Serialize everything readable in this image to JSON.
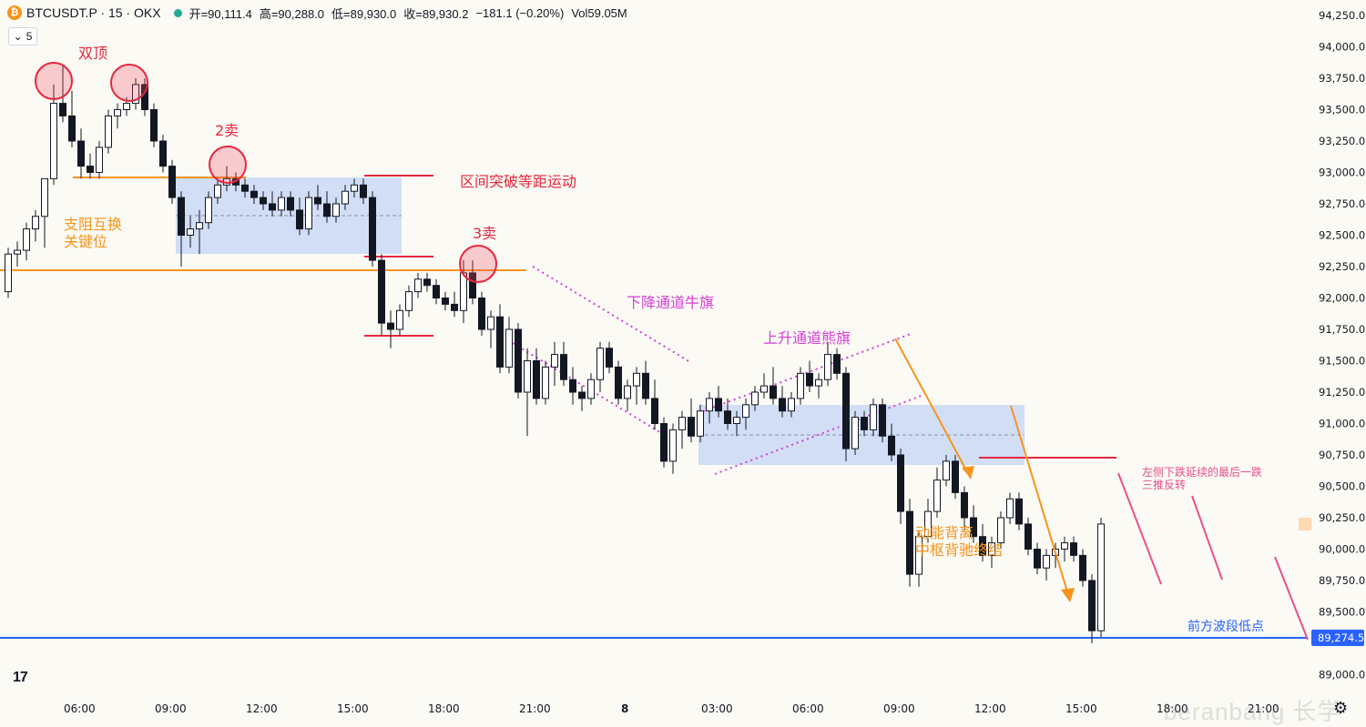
{
  "header": {
    "symbol": "BTCUSDT.P · 15 · OKX",
    "open": "开=90,111.4",
    "high": "高=90,288.0",
    "low": "低=89,930.0",
    "close": "收=89,930.2",
    "change": "−181.1 (−0.20%)",
    "volume": "Vol59.05M"
  },
  "interval_box": {
    "chevron": "⌄",
    "value": "5"
  },
  "price_axis": {
    "ticks": [
      94250,
      94000,
      93750,
      93500,
      93250,
      93000,
      92750,
      92500,
      92250,
      92000,
      91750,
      91500,
      91250,
      91000,
      90750,
      90500,
      90250,
      90000,
      89750,
      89500,
      89000
    ],
    "tick_labels": [
      "94,250.0",
      "94,000.0",
      "93,750.0",
      "93,500.0",
      "93,250.0",
      "93,000.0",
      "92,750.0",
      "92,500.0",
      "92,250.0",
      "92,000.0",
      "91,750.0",
      "91,500.0",
      "91,250.0",
      "91,000.0",
      "90,750.0",
      "90,500.0",
      "90,250.0",
      "90,000.0",
      "89,750.0",
      "89,500.0",
      "89,000.0"
    ],
    "current_price": 89274.5,
    "current_price_label": "89,274.5"
  },
  "time_axis": {
    "labels": [
      {
        "text": "06:00",
        "bar": 7
      },
      {
        "text": "09:00",
        "bar": 17
      },
      {
        "text": "12:00",
        "bar": 27
      },
      {
        "text": "15:00",
        "bar": 37
      },
      {
        "text": "18:00",
        "bar": 47
      },
      {
        "text": "21:00",
        "bar": 57
      },
      {
        "text": "8",
        "bar": 67
      },
      {
        "text": "03:00",
        "bar": 77
      },
      {
        "text": "06:00",
        "bar": 87
      },
      {
        "text": "09:00",
        "bar": 97
      },
      {
        "text": "12:00",
        "bar": 107
      },
      {
        "text": "15:00",
        "bar": 117
      },
      {
        "text": "18:00",
        "bar": 127
      },
      {
        "text": "21:00",
        "bar": 137
      }
    ]
  },
  "annotations": {
    "double_top": "双顶",
    "sell2": "2卖",
    "sell3": "3卖",
    "key_level_1": "支阻互换",
    "key_level_2": "关键位",
    "range_breakout": "区间突破等距运动",
    "bull_flag": "下降通道牛旗",
    "bear_flag": "上升通道熊旗",
    "divergence_1": "动能背离",
    "divergence_2": "中枢背驰终结",
    "three_push_1": "左侧下跌延续的最后一跌",
    "three_push_2": "三推反转",
    "prior_low": "前方波段低点"
  },
  "colors": {
    "up": "#131722",
    "down": "#131722",
    "orange": "#f7941d",
    "red": "#e5283e",
    "magenta": "#d63fd6",
    "pink": "#e8508c",
    "blue_line": "#2962ff",
    "range_fill": "#c9d8f6"
  },
  "watermark": "beranbang 长学",
  "chart_data": {
    "type": "candlestick",
    "interval": "15",
    "candles": [
      [
        92050,
        92400,
        92000,
        92350
      ],
      [
        92350,
        92450,
        92250,
        92380
      ],
      [
        92380,
        92600,
        92300,
        92550
      ],
      [
        92550,
        92700,
        92450,
        92650
      ],
      [
        92650,
        92950,
        92400,
        92950
      ],
      [
        92950,
        93700,
        92900,
        93550
      ],
      [
        93550,
        93850,
        93400,
        93450
      ],
      [
        93450,
        93650,
        93200,
        93250
      ],
      [
        93250,
        93350,
        92950,
        93050
      ],
      [
        93050,
        93150,
        92950,
        93000
      ],
      [
        93000,
        93250,
        92950,
        93200
      ],
      [
        93200,
        93500,
        93150,
        93450
      ],
      [
        93450,
        93550,
        93350,
        93500
      ],
      [
        93500,
        93600,
        93450,
        93550
      ],
      [
        93550,
        93750,
        93500,
        93700
      ],
      [
        93700,
        93750,
        93450,
        93500
      ],
      [
        93500,
        93550,
        93200,
        93250
      ],
      [
        93250,
        93300,
        93000,
        93050
      ],
      [
        93050,
        93100,
        92750,
        92800
      ],
      [
        92800,
        92850,
        92250,
        92500
      ],
      [
        92500,
        92650,
        92400,
        92550
      ],
      [
        92550,
        92700,
        92350,
        92600
      ],
      [
        92600,
        92850,
        92550,
        92800
      ],
      [
        92800,
        92950,
        92750,
        92900
      ],
      [
        92900,
        93050,
        92850,
        92950
      ],
      [
        92950,
        93000,
        92850,
        92900
      ],
      [
        92900,
        92950,
        92800,
        92850
      ],
      [
        92850,
        92900,
        92750,
        92800
      ],
      [
        92800,
        92850,
        92700,
        92750
      ],
      [
        92750,
        92850,
        92650,
        92700
      ],
      [
        92700,
        92850,
        92650,
        92800
      ],
      [
        92800,
        92850,
        92650,
        92700
      ],
      [
        92700,
        92800,
        92500,
        92550
      ],
      [
        92550,
        92850,
        92500,
        92800
      ],
      [
        92800,
        92900,
        92700,
        92750
      ],
      [
        92750,
        92850,
        92600,
        92650
      ],
      [
        92650,
        92800,
        92600,
        92750
      ],
      [
        92750,
        92900,
        92700,
        92850
      ],
      [
        92850,
        92950,
        92800,
        92900
      ],
      [
        92900,
        92950,
        92750,
        92800
      ],
      [
        92800,
        92850,
        92250,
        92300
      ],
      [
        92300,
        92350,
        91700,
        91800
      ],
      [
        91800,
        91900,
        91600,
        91750
      ],
      [
        91750,
        91950,
        91700,
        91900
      ],
      [
        91900,
        92100,
        91850,
        92050
      ],
      [
        92050,
        92200,
        92000,
        92150
      ],
      [
        92150,
        92200,
        92050,
        92100
      ],
      [
        92100,
        92150,
        91950,
        92000
      ],
      [
        92000,
        92050,
        91900,
        91950
      ],
      [
        91950,
        92050,
        91850,
        91900
      ],
      [
        91900,
        92300,
        91800,
        92200
      ],
      [
        92200,
        92300,
        91950,
        92000
      ],
      [
        92000,
        92050,
        91700,
        91750
      ],
      [
        91750,
        91900,
        91600,
        91850
      ],
      [
        91850,
        91950,
        91400,
        91450
      ],
      [
        91450,
        91850,
        91400,
        91750
      ],
      [
        91750,
        91800,
        91200,
        91250
      ],
      [
        91250,
        91600,
        90900,
        91500
      ],
      [
        91500,
        91600,
        91150,
        91200
      ],
      [
        91200,
        91500,
        91150,
        91450
      ],
      [
        91450,
        91650,
        91300,
        91550
      ],
      [
        91550,
        91650,
        91300,
        91350
      ],
      [
        91350,
        91450,
        91150,
        91250
      ],
      [
        91250,
        91300,
        91100,
        91200
      ],
      [
        91200,
        91400,
        91150,
        91350
      ],
      [
        91350,
        91650,
        91250,
        91600
      ],
      [
        91600,
        91650,
        91400,
        91450
      ],
      [
        91450,
        91500,
        91150,
        91200
      ],
      [
        91200,
        91350,
        91100,
        91300
      ],
      [
        91300,
        91450,
        91150,
        91400
      ],
      [
        91400,
        91500,
        91150,
        91200
      ],
      [
        91200,
        91350,
        90950,
        91000
      ],
      [
        91000,
        91050,
        90650,
        90700
      ],
      [
        90700,
        91000,
        90600,
        90950
      ],
      [
        90950,
        91100,
        90800,
        91050
      ],
      [
        91050,
        91200,
        90850,
        90900
      ],
      [
        90900,
        91150,
        90850,
        91100
      ],
      [
        91100,
        91250,
        91000,
        91200
      ],
      [
        91200,
        91300,
        91050,
        91100
      ],
      [
        91100,
        91200,
        90950,
        91000
      ],
      [
        91000,
        91100,
        90900,
        91050
      ],
      [
        91050,
        91200,
        90950,
        91150
      ],
      [
        91150,
        91300,
        91100,
        91250
      ],
      [
        91250,
        91400,
        91200,
        91300
      ],
      [
        91300,
        91450,
        91150,
        91200
      ],
      [
        91200,
        91300,
        91050,
        91100
      ],
      [
        91100,
        91250,
        91050,
        91200
      ],
      [
        91200,
        91450,
        91150,
        91400
      ],
      [
        91400,
        91500,
        91250,
        91300
      ],
      [
        91300,
        91400,
        91200,
        91350
      ],
      [
        91350,
        91650,
        91300,
        91550
      ],
      [
        91550,
        91600,
        91350,
        91400
      ],
      [
        91400,
        91450,
        90700,
        90800
      ],
      [
        90800,
        91100,
        90750,
        91050
      ],
      [
        91050,
        91100,
        90900,
        90950
      ],
      [
        90950,
        91200,
        90900,
        91150
      ],
      [
        91150,
        91200,
        90850,
        90900
      ],
      [
        90900,
        91000,
        90700,
        90750
      ],
      [
        90750,
        90800,
        90200,
        90300
      ],
      [
        90300,
        90400,
        89700,
        89800
      ],
      [
        89800,
        90150,
        89700,
        90100
      ],
      [
        90100,
        90400,
        90050,
        90300
      ],
      [
        90300,
        90650,
        90250,
        90550
      ],
      [
        90550,
        90750,
        90500,
        90700
      ],
      [
        90700,
        90750,
        90400,
        90450
      ],
      [
        90450,
        90500,
        90150,
        90250
      ],
      [
        90250,
        90350,
        90050,
        90100
      ],
      [
        90100,
        90200,
        89900,
        89950
      ],
      [
        89950,
        90100,
        89850,
        90050
      ],
      [
        90050,
        90300,
        90000,
        90250
      ],
      [
        90250,
        90450,
        90200,
        90400
      ],
      [
        90400,
        90450,
        90150,
        90200
      ],
      [
        90200,
        90250,
        89950,
        90000
      ],
      [
        90000,
        90050,
        89800,
        89850
      ],
      [
        89850,
        90000,
        89750,
        89950
      ],
      [
        89950,
        90050,
        89850,
        90000
      ],
      [
        90000,
        90100,
        89900,
        90050
      ],
      [
        90050,
        90100,
        89900,
        89950
      ],
      [
        89950,
        90000,
        89700,
        89750
      ],
      [
        89750,
        89800,
        89250,
        89350
      ],
      [
        89350,
        90250,
        89300,
        90200
      ]
    ],
    "lines": {
      "range_breakout_levels": [
        92950,
        92330,
        91700
      ],
      "support_resistance": [
        92970,
        92220
      ],
      "prior_swing_low": 89274.5
    }
  }
}
